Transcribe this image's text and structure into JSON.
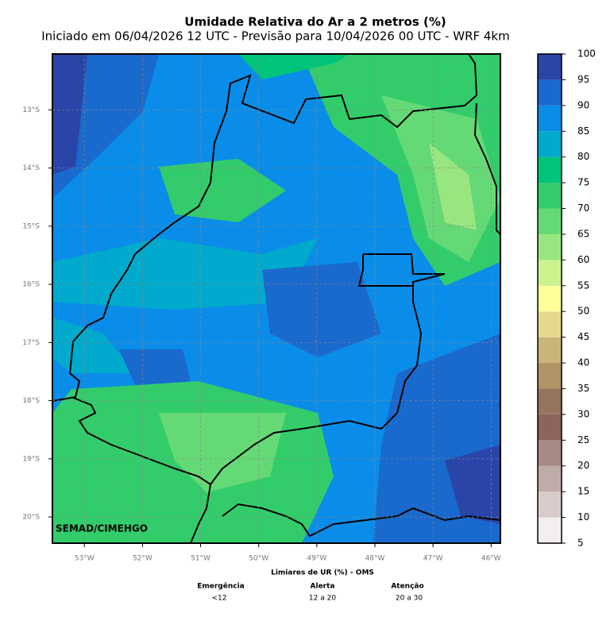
{
  "header": {
    "title": "Umidade Relativa do Ar a 2 metros (%)",
    "subtitle": "Iniciado em 06/04/2026 12 UTC - Previsão para 10/04/2026 00 UTC - WRF 4km"
  },
  "map": {
    "watermark": "SEMAD/CIMEHGO",
    "xlim": [
      -53.55,
      -45.84
    ],
    "ylim": [
      -20.45,
      -12.04
    ],
    "xticks": [
      {
        "value": -53,
        "label": "53°W"
      },
      {
        "value": -52,
        "label": "52°W"
      },
      {
        "value": -51,
        "label": "51°W"
      },
      {
        "value": -50,
        "label": "50°W"
      },
      {
        "value": -49,
        "label": "49°W"
      },
      {
        "value": -48,
        "label": "48°W"
      },
      {
        "value": -47,
        "label": "47°W"
      },
      {
        "value": -46,
        "label": "46°W"
      }
    ],
    "yticks": [
      {
        "value": -13,
        "label": "13°S"
      },
      {
        "value": -14,
        "label": "14°S"
      },
      {
        "value": -15,
        "label": "15°S"
      },
      {
        "value": -16,
        "label": "16°S"
      },
      {
        "value": -17,
        "label": "17°S"
      },
      {
        "value": -18,
        "label": "18°S"
      },
      {
        "value": -19,
        "label": "19°S"
      },
      {
        "value": -20,
        "label": "20°S"
      }
    ],
    "grid": true
  },
  "colorbar": {
    "lim": [
      5,
      100
    ],
    "ticks": [
      5,
      10,
      15,
      20,
      25,
      30,
      35,
      40,
      45,
      50,
      55,
      60,
      65,
      70,
      75,
      80,
      85,
      90,
      95,
      100
    ],
    "colors": [
      "#f2eeee",
      "#d8cccb",
      "#bfaba7",
      "#a68a83",
      "#8c645c",
      "#967560",
      "#ae9467",
      "#c9b579",
      "#e5d98d",
      "#ffff99",
      "#ccf28e",
      "#99e680",
      "#66d977",
      "#33cc6b",
      "#00c47a",
      "#00aacc",
      "#0a8de8",
      "#1a69cc",
      "#2a45a8"
    ]
  },
  "footer": {
    "title": "Limiares de UR (%) - OMS",
    "levels": [
      {
        "name": "Emergência",
        "range": "<12"
      },
      {
        "name": "Alerta",
        "range": "12 a 20"
      },
      {
        "name": "Atenção",
        "range": "20 a 30"
      }
    ]
  }
}
